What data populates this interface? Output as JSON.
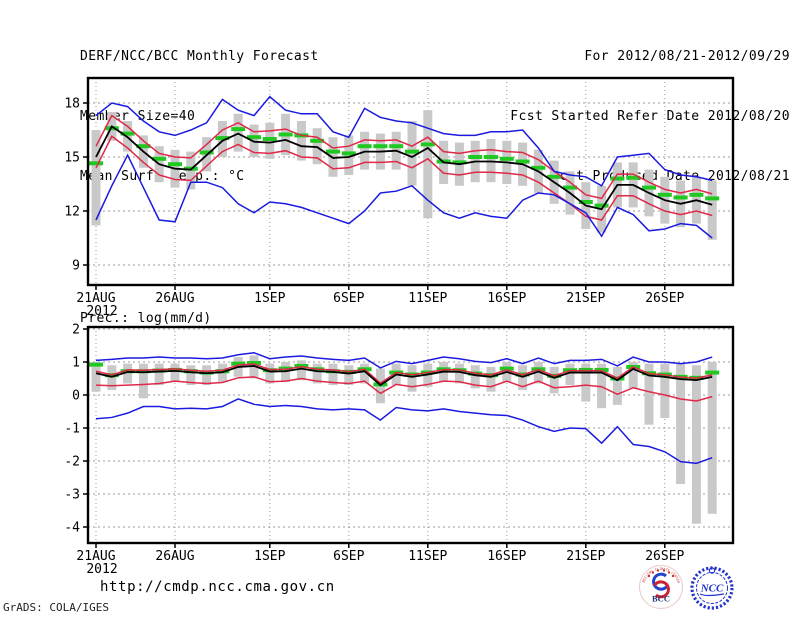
{
  "header": {
    "title": "DERF/NCC/BCC Monthly Forecast",
    "member_size": "Member Size=40",
    "for_range": "For 2012/08/21-2012/09/29",
    "refer_date": "Fcst Started Refer Date 2012/08/20",
    "produced_date": "Fcst Produced Date 2012/08/21"
  },
  "footer": {
    "url": "http://cmdp.ncc.cma.gov.cn",
    "grads_credit": "GrADS: COLA/IGES",
    "bcc_logo_text": "BCC",
    "bcc_logo_ring_text": "BEIJING CLIMATE CENTER",
    "ncc_logo_text": "NCC"
  },
  "colors": {
    "ensemble_max_min": "#1a1ae0",
    "spread_band": "#e02848",
    "ensemble_mean": "#000000",
    "climatology": "#22c822",
    "member_bar": "#c9c9c9",
    "grid": "#999999"
  },
  "chart_data": [
    {
      "type": "line",
      "title": "Mean Surf. Temp.: °C",
      "n_days": 40,
      "x_year_label": "2012",
      "x_ticks": [
        {
          "label": "21AUG",
          "day": 0
        },
        {
          "label": "26AUG",
          "day": 5
        },
        {
          "label": "1SEP",
          "day": 11
        },
        {
          "label": "6SEP",
          "day": 16
        },
        {
          "label": "11SEP",
          "day": 21
        },
        {
          "label": "16SEP",
          "day": 26
        },
        {
          "label": "21SEP",
          "day": 31
        },
        {
          "label": "26SEP",
          "day": 36
        }
      ],
      "y_ticks": [
        9,
        12,
        15,
        18
      ],
      "ylim": [
        7.9,
        19.4
      ],
      "series": [
        {
          "name": "ensemble-max",
          "style": "line",
          "color": "#1a1ae0",
          "values": [
            17.3,
            18.0,
            17.8,
            17.0,
            16.4,
            16.2,
            16.5,
            16.9,
            18.2,
            17.6,
            17.3,
            18.35,
            17.6,
            17.4,
            17.4,
            16.4,
            16.1,
            17.7,
            17.2,
            17.0,
            16.9,
            16.6,
            16.3,
            16.2,
            16.2,
            16.4,
            16.4,
            16.5,
            15.5,
            14.2,
            14.0,
            13.9,
            13.4,
            15.0,
            15.1,
            15.2,
            14.3,
            14.0,
            13.9,
            13.7
          ]
        },
        {
          "name": "mean-plus-spread",
          "style": "line",
          "color": "#e02848",
          "values": [
            15.6,
            17.3,
            16.7,
            15.9,
            15.2,
            15.0,
            14.95,
            15.7,
            16.5,
            16.9,
            16.4,
            16.45,
            16.55,
            16.2,
            16.1,
            15.5,
            15.6,
            15.95,
            15.9,
            15.95,
            15.6,
            16.1,
            15.3,
            15.2,
            15.35,
            15.4,
            15.3,
            15.25,
            14.85,
            14.2,
            13.6,
            12.9,
            12.7,
            14.05,
            14.05,
            13.6,
            13.2,
            13.0,
            13.2,
            12.95
          ]
        },
        {
          "name": "ensemble-mean",
          "style": "line",
          "color": "#000000",
          "values": [
            15.0,
            16.7,
            16.1,
            15.3,
            14.6,
            14.35,
            14.3,
            15.1,
            15.9,
            16.3,
            15.85,
            15.8,
            15.95,
            15.6,
            15.55,
            14.95,
            15.0,
            15.3,
            15.3,
            15.35,
            15.0,
            15.5,
            14.7,
            14.6,
            14.75,
            14.75,
            14.7,
            14.6,
            14.2,
            13.6,
            13.0,
            12.3,
            12.1,
            13.45,
            13.45,
            13.0,
            12.6,
            12.4,
            12.6,
            12.35
          ]
        },
        {
          "name": "mean-minus-spread",
          "style": "line",
          "color": "#e02848",
          "values": [
            14.4,
            16.15,
            15.5,
            14.7,
            14.0,
            13.75,
            13.7,
            14.5,
            15.3,
            15.7,
            15.25,
            15.2,
            15.35,
            15.0,
            14.95,
            14.35,
            14.4,
            14.7,
            14.7,
            14.75,
            14.4,
            14.9,
            14.1,
            14.0,
            14.15,
            14.15,
            14.1,
            14.0,
            13.6,
            13.0,
            12.4,
            11.7,
            11.5,
            12.85,
            12.85,
            12.4,
            12.0,
            11.8,
            12.0,
            11.75
          ]
        },
        {
          "name": "ensemble-min",
          "style": "line",
          "color": "#1a1ae0",
          "values": [
            11.5,
            13.4,
            15.1,
            13.3,
            11.5,
            11.4,
            13.6,
            13.6,
            13.3,
            12.4,
            11.9,
            12.5,
            12.4,
            12.2,
            11.9,
            11.6,
            11.3,
            12.0,
            13.0,
            13.1,
            13.4,
            12.6,
            11.9,
            11.6,
            11.9,
            11.7,
            11.6,
            12.6,
            13.0,
            12.9,
            12.4,
            11.9,
            10.6,
            12.2,
            11.8,
            10.9,
            11.0,
            11.3,
            11.2,
            10.5
          ]
        },
        {
          "name": "climatology-dash",
          "style": "dash",
          "color": "#22c822",
          "values": [
            14.65,
            16.6,
            16.3,
            15.6,
            14.9,
            14.6,
            14.35,
            15.25,
            16.05,
            16.55,
            16.1,
            16.0,
            16.25,
            16.2,
            15.9,
            15.3,
            15.2,
            15.6,
            15.6,
            15.6,
            15.3,
            15.7,
            14.75,
            14.7,
            15.0,
            15.0,
            14.9,
            14.75,
            14.4,
            13.9,
            13.3,
            12.5,
            12.3,
            13.8,
            13.85,
            13.3,
            12.9,
            12.75,
            12.9,
            12.7
          ]
        },
        {
          "name": "member-spread-bar",
          "style": "bar",
          "color": "#c9c9c9",
          "low": [
            11.2,
            15.9,
            15.3,
            14.4,
            13.6,
            13.3,
            13.2,
            14.2,
            15.0,
            15.3,
            15.0,
            14.9,
            15.1,
            14.8,
            14.6,
            13.9,
            14.0,
            14.3,
            14.3,
            14.3,
            13.4,
            11.6,
            13.5,
            13.4,
            13.6,
            13.6,
            13.5,
            13.4,
            13.0,
            12.4,
            11.8,
            11.0,
            10.8,
            12.2,
            12.2,
            11.7,
            11.3,
            11.1,
            11.3,
            10.4
          ],
          "high": [
            16.5,
            17.5,
            17.0,
            16.2,
            15.6,
            15.4,
            15.3,
            16.1,
            17.0,
            17.4,
            16.8,
            16.9,
            17.4,
            17.0,
            16.6,
            16.1,
            16.2,
            16.4,
            16.3,
            16.4,
            17.0,
            17.6,
            15.9,
            15.8,
            15.9,
            16.0,
            15.9,
            15.8,
            15.4,
            14.8,
            14.2,
            13.6,
            13.4,
            14.7,
            14.7,
            14.3,
            13.9,
            13.7,
            13.9,
            13.7
          ]
        }
      ]
    },
    {
      "type": "line",
      "title": "Prec.: log(mm/d)",
      "n_days": 40,
      "x_year_label": "2012",
      "x_ticks": [
        {
          "label": "21AUG",
          "day": 0
        },
        {
          "label": "26AUG",
          "day": 5
        },
        {
          "label": "1SEP",
          "day": 11
        },
        {
          "label": "6SEP",
          "day": 16
        },
        {
          "label": "11SEP",
          "day": 21
        },
        {
          "label": "16SEP",
          "day": 26
        },
        {
          "label": "21SEP",
          "day": 31
        },
        {
          "label": "26SEP",
          "day": 36
        }
      ],
      "y_ticks": [
        -4,
        -3,
        -2,
        -1,
        0,
        1,
        2
      ],
      "ylim": [
        -4.48,
        2.06
      ],
      "series": [
        {
          "name": "ensemble-max",
          "style": "line",
          "color": "#1a1ae0",
          "values": [
            1.05,
            1.08,
            1.12,
            1.12,
            1.15,
            1.12,
            1.12,
            1.1,
            1.12,
            1.22,
            1.28,
            1.1,
            1.15,
            1.18,
            1.12,
            1.08,
            1.05,
            1.12,
            0.82,
            1.02,
            0.95,
            1.05,
            1.15,
            1.1,
            1.02,
            0.98,
            1.1,
            0.95,
            1.12,
            0.95,
            1.05,
            1.05,
            1.08,
            0.88,
            1.15,
            1.0,
            1.0,
            0.95,
            1.0,
            1.15
          ]
        },
        {
          "name": "mean-plus-spread",
          "style": "line",
          "color": "#e02848",
          "values": [
            0.72,
            0.61,
            0.76,
            0.75,
            0.77,
            0.79,
            0.75,
            0.72,
            0.75,
            0.91,
            0.94,
            0.77,
            0.78,
            0.86,
            0.78,
            0.76,
            0.71,
            0.78,
            0.36,
            0.68,
            0.61,
            0.68,
            0.77,
            0.76,
            0.66,
            0.61,
            0.76,
            0.61,
            0.77,
            0.58,
            0.74,
            0.74,
            0.74,
            0.51,
            0.85,
            0.65,
            0.61,
            0.54,
            0.51,
            0.61
          ]
        },
        {
          "name": "ensemble-mean",
          "style": "line",
          "color": "#000000",
          "values": [
            0.66,
            0.55,
            0.7,
            0.69,
            0.71,
            0.73,
            0.69,
            0.66,
            0.69,
            0.85,
            0.88,
            0.71,
            0.72,
            0.8,
            0.72,
            0.7,
            0.65,
            0.72,
            0.3,
            0.62,
            0.55,
            0.62,
            0.71,
            0.7,
            0.6,
            0.55,
            0.7,
            0.55,
            0.71,
            0.52,
            0.68,
            0.68,
            0.68,
            0.45,
            0.79,
            0.59,
            0.55,
            0.48,
            0.45,
            0.55
          ]
        },
        {
          "name": "mean-minus-spread",
          "style": "line",
          "color": "#e02848",
          "values": [
            0.3,
            0.28,
            0.3,
            0.32,
            0.35,
            0.42,
            0.38,
            0.35,
            0.38,
            0.52,
            0.55,
            0.4,
            0.42,
            0.5,
            0.42,
            0.38,
            0.35,
            0.42,
            0.05,
            0.32,
            0.25,
            0.32,
            0.42,
            0.4,
            0.3,
            0.25,
            0.42,
            0.25,
            0.42,
            0.22,
            0.25,
            0.3,
            0.25,
            0.02,
            0.22,
            0.1,
            0.0,
            -0.12,
            -0.18,
            -0.05
          ]
        },
        {
          "name": "ensemble-min",
          "style": "line",
          "color": "#1a1ae0",
          "values": [
            -0.72,
            -0.68,
            -0.55,
            -0.35,
            -0.35,
            -0.42,
            -0.4,
            -0.42,
            -0.35,
            -0.12,
            -0.28,
            -0.35,
            -0.32,
            -0.35,
            -0.42,
            -0.45,
            -0.42,
            -0.45,
            -0.76,
            -0.38,
            -0.45,
            -0.48,
            -0.42,
            -0.5,
            -0.55,
            -0.6,
            -0.62,
            -0.76,
            -0.96,
            -1.1,
            -1.0,
            -1.02,
            -1.46,
            -0.96,
            -1.5,
            -1.56,
            -1.72,
            -2.02,
            -2.07,
            -1.9
          ]
        },
        {
          "name": "climatology-dash",
          "style": "dash",
          "color": "#22c822",
          "values": [
            0.92,
            0.6,
            0.72,
            0.72,
            0.74,
            0.76,
            0.72,
            0.68,
            0.72,
            0.95,
            0.97,
            0.75,
            0.8,
            0.88,
            0.78,
            0.72,
            0.7,
            0.78,
            0.32,
            0.68,
            0.62,
            0.68,
            0.78,
            0.75,
            0.65,
            0.6,
            0.8,
            0.62,
            0.78,
            0.58,
            0.75,
            0.76,
            0.76,
            0.5,
            0.85,
            0.66,
            0.62,
            0.55,
            0.52,
            0.68
          ]
        },
        {
          "name": "member-spread-bar",
          "style": "bar",
          "color": "#c9c9c9",
          "low": [
            0.1,
            0.15,
            0.35,
            -0.1,
            0.3,
            0.4,
            0.3,
            0.3,
            0.4,
            0.55,
            0.5,
            0.35,
            0.4,
            0.45,
            0.35,
            0.3,
            0.3,
            0.35,
            -0.25,
            0.3,
            0.1,
            0.25,
            0.4,
            0.35,
            0.2,
            0.1,
            0.4,
            0.15,
            0.35,
            0.05,
            0.3,
            -0.2,
            -0.4,
            -0.3,
            0.2,
            -0.9,
            -0.7,
            -2.7,
            -3.9,
            -3.6
          ],
          "high": [
            1.0,
            0.9,
            0.95,
            0.95,
            0.95,
            0.95,
            0.9,
            0.9,
            0.95,
            1.15,
            1.2,
            0.95,
            1.0,
            1.05,
            0.95,
            0.95,
            0.9,
            0.95,
            0.8,
            0.95,
            0.9,
            0.95,
            1.0,
            0.95,
            0.9,
            0.85,
            1.0,
            0.9,
            1.0,
            0.85,
            0.95,
            0.95,
            0.95,
            0.85,
            1.0,
            0.95,
            0.95,
            0.95,
            0.9,
            1.0
          ]
        }
      ]
    }
  ]
}
